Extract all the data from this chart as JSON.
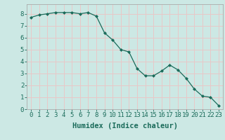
{
  "x": [
    0,
    1,
    2,
    3,
    4,
    5,
    6,
    7,
    8,
    9,
    10,
    11,
    12,
    13,
    14,
    15,
    16,
    17,
    18,
    19,
    20,
    21,
    22,
    23
  ],
  "y": [
    7.7,
    7.9,
    8.0,
    8.1,
    8.1,
    8.1,
    8.0,
    8.1,
    7.8,
    6.4,
    5.8,
    5.0,
    4.8,
    3.4,
    2.8,
    2.8,
    3.2,
    3.7,
    3.3,
    2.6,
    1.7,
    1.1,
    1.0,
    0.3
  ],
  "line_color": "#1a6b5a",
  "marker": "D",
  "marker_size": 2.0,
  "bg_color": "#cce8e4",
  "grid_color": "#e8c8c8",
  "xlabel": "Humidex (Indice chaleur)",
  "xlim": [
    -0.5,
    23.5
  ],
  "ylim": [
    0,
    8.8
  ],
  "xtick_labels": [
    "0",
    "1",
    "2",
    "3",
    "4",
    "5",
    "6",
    "7",
    "8",
    "9",
    "10",
    "11",
    "12",
    "13",
    "14",
    "15",
    "16",
    "17",
    "18",
    "19",
    "20",
    "21",
    "22",
    "23"
  ],
  "ytick_values": [
    0,
    1,
    2,
    3,
    4,
    5,
    6,
    7,
    8
  ],
  "font_size": 6.5,
  "xlabel_fontsize": 7.5,
  "tick_color": "#1a6b5a",
  "label_color": "#1a6b5a"
}
